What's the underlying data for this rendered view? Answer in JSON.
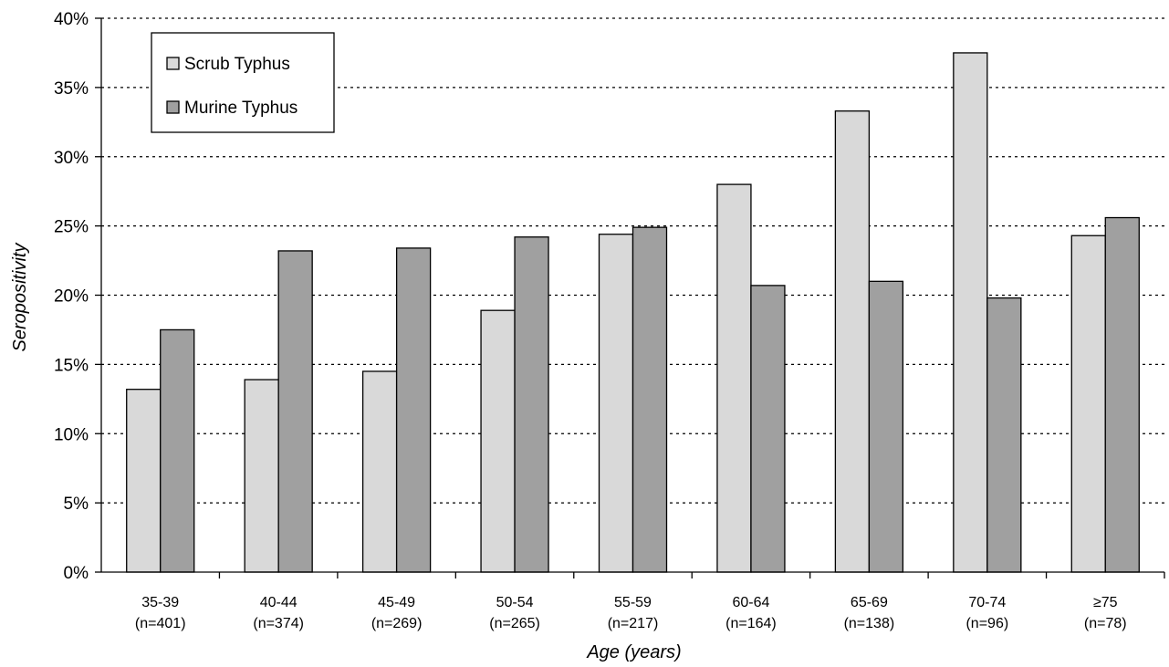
{
  "chart_data": {
    "type": "bar",
    "categories": [
      "35-39",
      "40-44",
      "45-49",
      "50-54",
      "55-59",
      "60-64",
      "65-69",
      "70-74",
      "≥75"
    ],
    "category_counts": [
      "(n=401)",
      "(n=374)",
      "(n=269)",
      "(n=265)",
      "(n=217)",
      "(n=164)",
      "(n=138)",
      "(n=96)",
      "(n=78)"
    ],
    "series": [
      {
        "name": "Scrub Typhus",
        "color": "#d9d9d9",
        "values": [
          13.2,
          13.9,
          14.5,
          18.9,
          24.4,
          28.0,
          33.3,
          37.5,
          24.3
        ]
      },
      {
        "name": "Murine Typhus",
        "color": "#a0a0a0",
        "values": [
          17.5,
          23.2,
          23.4,
          24.2,
          24.9,
          20.7,
          21.0,
          19.8,
          25.6
        ]
      }
    ],
    "xlabel": "Age (years)",
    "ylabel": "Seropositivity",
    "ylim": [
      0,
      40
    ],
    "yticks": [
      0,
      5,
      10,
      15,
      20,
      25,
      30,
      35,
      40
    ],
    "ytick_suffix": "%",
    "grid": true,
    "legend_position": "top-left"
  }
}
